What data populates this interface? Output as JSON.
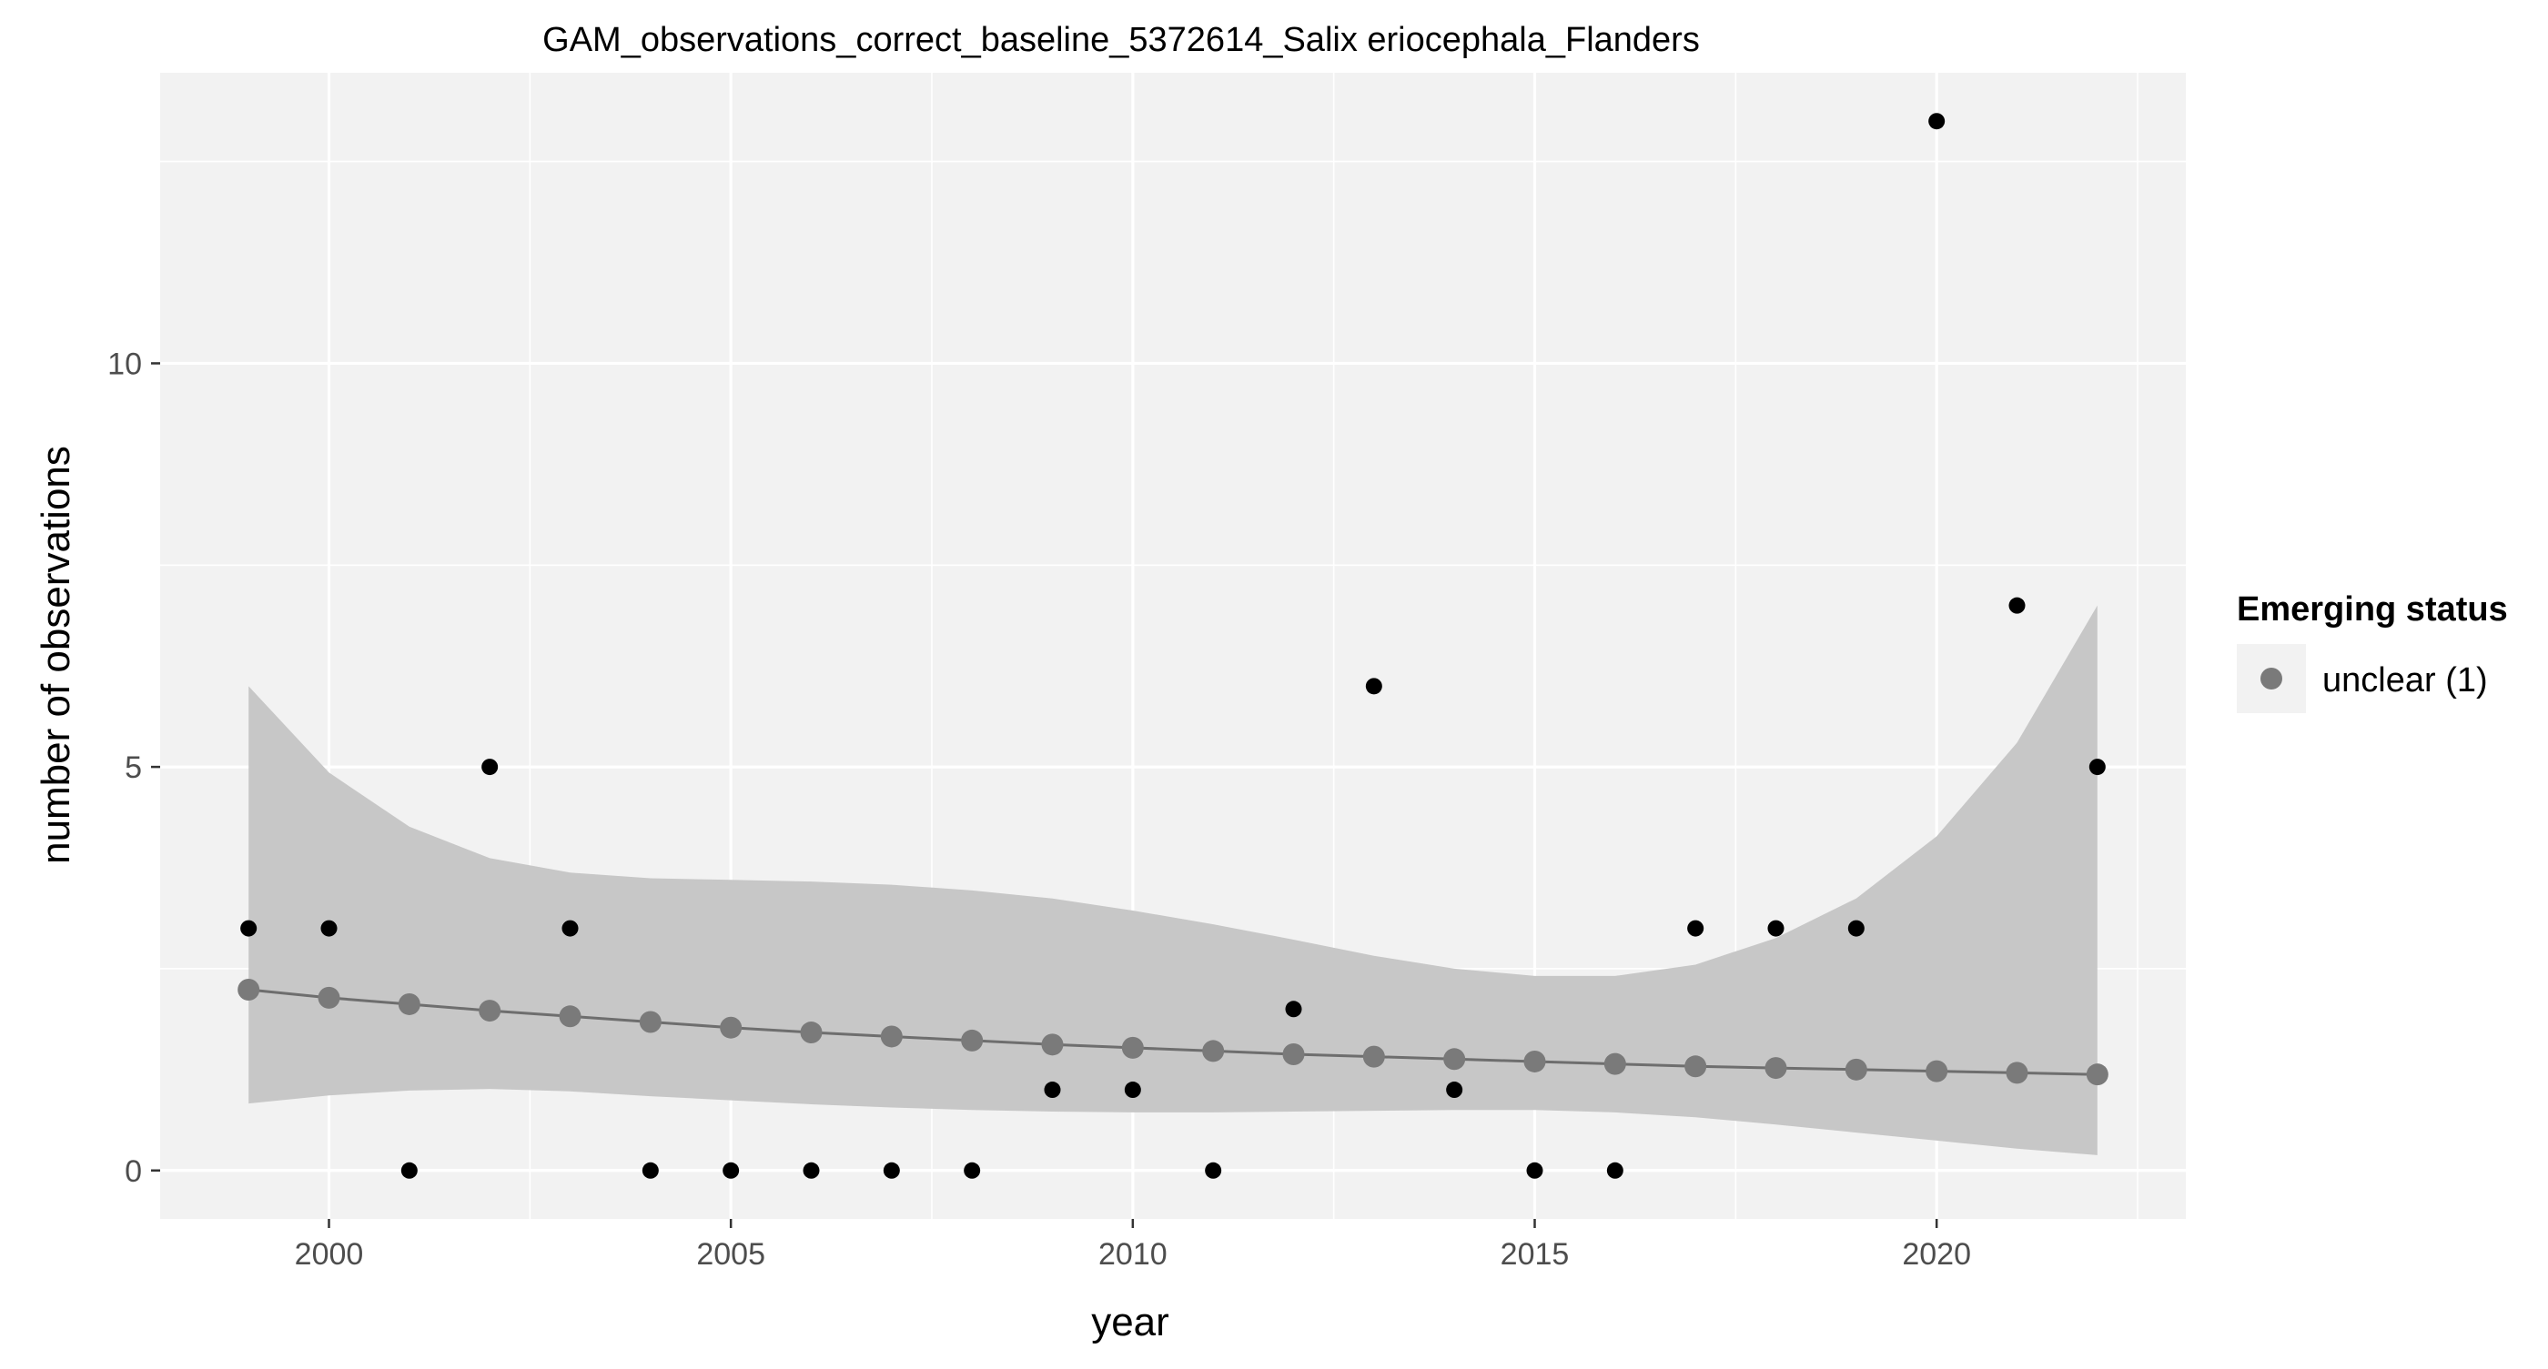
{
  "chart_data": {
    "type": "scatter",
    "title": "GAM_observations_correct_baseline_5372614_Salix eriocephala_Flanders",
    "xlabel": "year",
    "ylabel": "number of observations",
    "xlim": [
      1997.9,
      2023.1
    ],
    "ylim": [
      -0.6,
      13.6
    ],
    "xticks": [
      2000,
      2005,
      2010,
      2015,
      2020
    ],
    "yticks": [
      0,
      5,
      10
    ],
    "grid": true,
    "legend": {
      "title": "Emerging status",
      "placement": "right",
      "entries": [
        {
          "label": "unclear (1)",
          "color": "#7a7a7a"
        }
      ]
    },
    "observed": {
      "x": [
        1999,
        2000,
        2001,
        2002,
        2003,
        2004,
        2005,
        2006,
        2007,
        2008,
        2009,
        2010,
        2011,
        2012,
        2013,
        2014,
        2015,
        2016,
        2017,
        2018,
        2019,
        2020,
        2021,
        2022
      ],
      "y": [
        3,
        3,
        0,
        5,
        3,
        0,
        0,
        0,
        0,
        0,
        1,
        1,
        0,
        2,
        6,
        1,
        0,
        0,
        3,
        3,
        3,
        13,
        7,
        5
      ],
      "color": "#000000"
    },
    "fitted": {
      "x": [
        1999,
        2000,
        2001,
        2002,
        2003,
        2004,
        2005,
        2006,
        2007,
        2008,
        2009,
        2010,
        2011,
        2012,
        2013,
        2014,
        2015,
        2016,
        2017,
        2018,
        2019,
        2020,
        2021,
        2022
      ],
      "y": [
        2.24,
        2.14,
        2.06,
        1.98,
        1.91,
        1.84,
        1.77,
        1.71,
        1.66,
        1.61,
        1.56,
        1.52,
        1.48,
        1.44,
        1.41,
        1.38,
        1.35,
        1.32,
        1.29,
        1.27,
        1.25,
        1.23,
        1.21,
        1.19
      ],
      "lower": [
        0.83,
        0.93,
        0.99,
        1.01,
        0.98,
        0.92,
        0.87,
        0.82,
        0.78,
        0.75,
        0.73,
        0.72,
        0.72,
        0.73,
        0.74,
        0.75,
        0.75,
        0.72,
        0.66,
        0.57,
        0.47,
        0.37,
        0.27,
        0.19
      ],
      "upper": [
        6.0,
        4.93,
        4.26,
        3.87,
        3.69,
        3.62,
        3.6,
        3.58,
        3.54,
        3.47,
        3.37,
        3.22,
        3.05,
        2.86,
        2.66,
        2.5,
        2.41,
        2.41,
        2.55,
        2.88,
        3.37,
        4.14,
        5.3,
        7.0
      ],
      "line_color": "#6e6e6e",
      "point_color": "#7a7a7a",
      "band_color": "#c4c4c4"
    },
    "colors": {
      "panel_background": "#f2f2f2",
      "grid": "#ffffff",
      "axis_text": "#4d4d4d"
    }
  }
}
